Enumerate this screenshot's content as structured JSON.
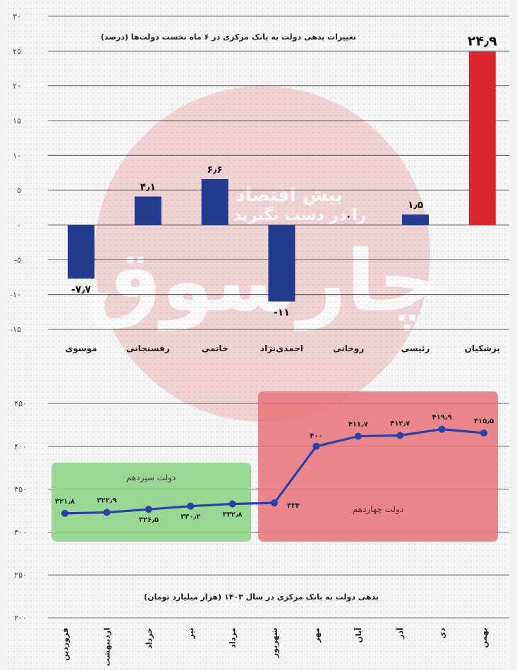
{
  "chart_data": [
    {
      "type": "bar",
      "title": "تغییرات بدهی دولت به بانک مرکزی در ۶ ماه نخست دولت‌ها (درصد)",
      "categories": [
        "موسوی",
        "رفسنجانی",
        "خاتمی",
        "احمدی‌نژاد",
        "روحانی",
        "رئیسی",
        "پزشکیان"
      ],
      "values": [
        -7.7,
        4.1,
        6.6,
        -11,
        0,
        1.5,
        24.9
      ],
      "value_labels": [
        "-۷٫۷",
        "۴٫۱",
        "۶٫۶",
        "-۱۱",
        "۰",
        "۱٫۵",
        "۲۴٫۹"
      ],
      "colors": [
        "#243c8f",
        "#243c8f",
        "#243c8f",
        "#243c8f",
        "#243c8f",
        "#243c8f",
        "#d9262c"
      ],
      "yticks": [
        30,
        25,
        20,
        15,
        10,
        5,
        0,
        -5,
        -10,
        -15
      ],
      "ytick_labels": [
        "۳۰",
        "۲۵",
        "۲۰",
        "۱۵",
        "۱۰",
        "۵",
        "۰",
        "-۵",
        "-۱۰",
        "-۱۵"
      ],
      "ylim": [
        -15,
        30
      ],
      "grid": true
    },
    {
      "type": "line",
      "title": "بدهی دولت به بانک مرکزی در سال ۱۴۰۳ (هزار میلیارد تومان)",
      "categories": [
        "فروردین",
        "اردیبهشت",
        "خرداد",
        "تیر",
        "مرداد",
        "شهریور",
        "مهر",
        "آبان",
        "آذر",
        "دی",
        "بهمن"
      ],
      "values": [
        321.8,
        322.9,
        326.5,
        330.2,
        332.8,
        334,
        400,
        411.7,
        412.7,
        419.9,
        415.5
      ],
      "value_labels": [
        "۳۲۱٫۸",
        "۳۲۲٫۹",
        "۳۲۶٫۵",
        "۳۳۰٫۲",
        "۳۳۲٫۸",
        "۳۳۴",
        "۴۰۰",
        "۴۱۱٫۷",
        "۴۱۲٫۷",
        "۴۱۹٫۹",
        "۴۱۵٫۵"
      ],
      "yticks": [
        450,
        400,
        350,
        300,
        250,
        200
      ],
      "ytick_labels": [
        "۴۵۰",
        "۴۰۰",
        "۳۵۰",
        "۳۰۰",
        "۲۵۰",
        "۲۰۰"
      ],
      "ylim": [
        200,
        450
      ],
      "line_color": "#2c3ea8",
      "grid": true,
      "regions": [
        {
          "label": "دولت سیزدهم",
          "from": "فروردین",
          "to": "مرداد",
          "color": "#8fd48a"
        },
        {
          "label": "دولت چهاردهم",
          "from": "شهریور",
          "to": "بهمن",
          "color": "#e8737a"
        }
      ]
    }
  ],
  "watermark": {
    "text_line1": "بیش اقتصاد",
    "text_line2": "را در دست بگیرید",
    "logo_text": "چارسوق",
    "color": "#e58a8a"
  }
}
